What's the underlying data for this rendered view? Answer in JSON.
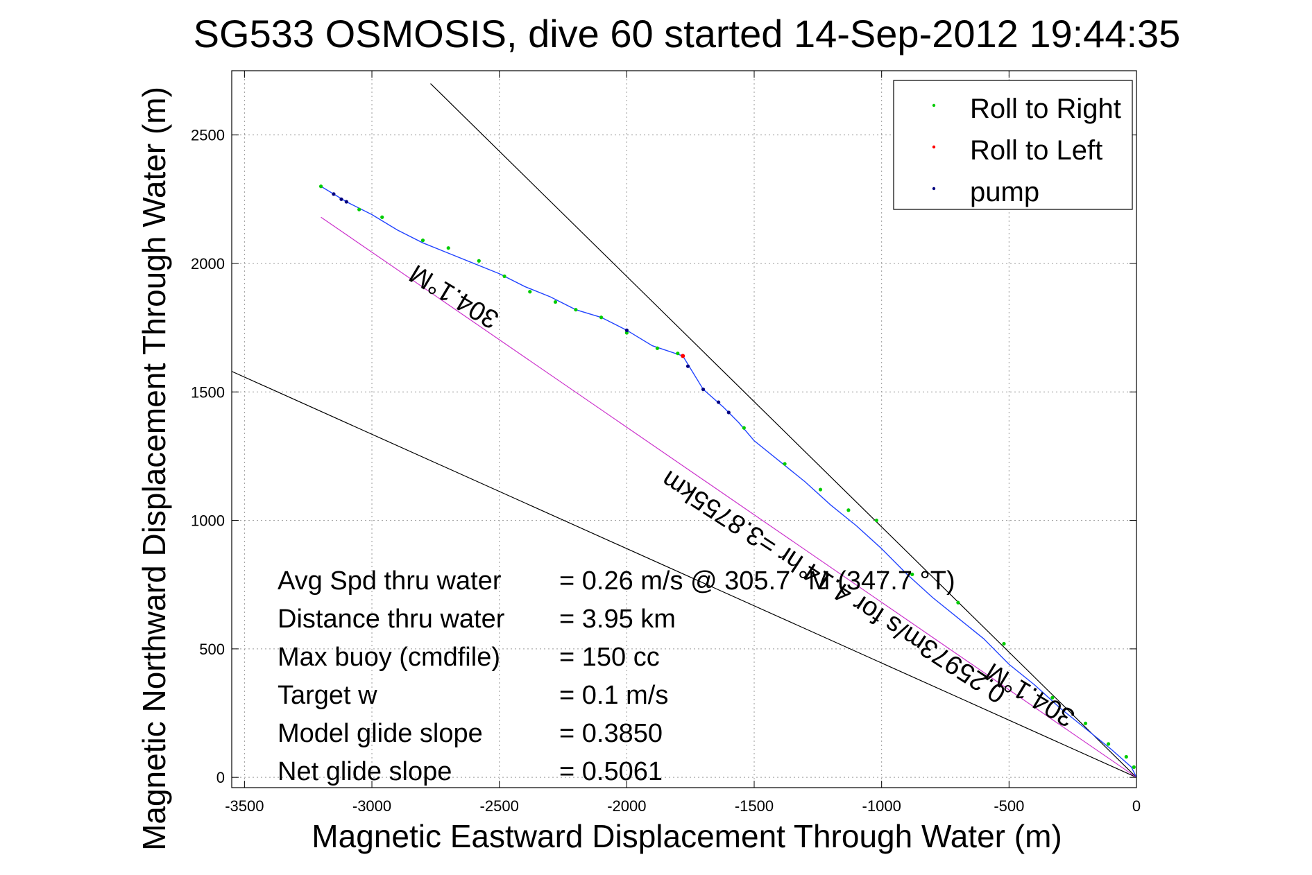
{
  "chart_data": {
    "type": "scatter",
    "title": "SG533 OSMOSIS, dive 60 started 14-Sep-2012 19:44:35",
    "xlabel": "Magnetic Eastward Displacement Through Water (m)",
    "ylabel": "Magnetic Northward Displacement Through Water (m)",
    "xlim": [
      -3550,
      0
    ],
    "ylim": [
      -40,
      2750
    ],
    "xticks": [
      -3500,
      -3000,
      -2500,
      -2000,
      -1500,
      -1000,
      -500,
      0
    ],
    "yticks": [
      0,
      500,
      1000,
      1500,
      2000,
      2500
    ],
    "xtick_labels": [
      "-3500",
      "-3000",
      "-2500",
      "-2000",
      "-1500",
      "-1000",
      "-500",
      "0"
    ],
    "ytick_labels": [
      "0",
      "500",
      "1000",
      "1500",
      "2000",
      "2500"
    ],
    "grid": true,
    "legend_position": "top-right",
    "legend": [
      {
        "label": "Roll to Right",
        "color": "#00cc00"
      },
      {
        "label": "Roll to Left",
        "color": "#ff0000"
      },
      {
        "label": "pump",
        "color": "#000080"
      }
    ],
    "track": {
      "color": "#2244ff",
      "x": [
        -3200,
        -3100,
        -3000,
        -2900,
        -2800,
        -2700,
        -2600,
        -2500,
        -2400,
        -2300,
        -2200,
        -2100,
        -2000,
        -1900,
        -1780,
        -1700,
        -1620,
        -1560,
        -1500,
        -1400,
        -1300,
        -1200,
        -1100,
        -1000,
        -900,
        -800,
        -700,
        -600,
        -500,
        -400,
        -300,
        -200,
        -100,
        -20,
        0
      ],
      "y": [
        2300,
        2240,
        2190,
        2130,
        2080,
        2040,
        2000,
        1960,
        1910,
        1870,
        1820,
        1790,
        1740,
        1680,
        1640,
        1510,
        1440,
        1380,
        1310,
        1230,
        1150,
        1060,
        980,
        890,
        790,
        700,
        620,
        540,
        440,
        360,
        270,
        190,
        110,
        40,
        0
      ]
    },
    "roll_right_points": {
      "x": [
        -3200,
        -3050,
        -2960,
        -2800,
        -2700,
        -2580,
        -2480,
        -2380,
        -2280,
        -2200,
        -2100,
        -2000,
        -1880,
        -1800,
        -1540,
        -1380,
        -1240,
        -1130,
        -1020,
        -880,
        -700,
        -520,
        -330,
        -200,
        -110,
        -40,
        -10
      ],
      "y": [
        2300,
        2210,
        2180,
        2090,
        2060,
        2010,
        1950,
        1890,
        1850,
        1820,
        1790,
        1730,
        1670,
        1650,
        1360,
        1220,
        1120,
        1040,
        1000,
        790,
        680,
        520,
        310,
        210,
        130,
        80,
        40
      ]
    },
    "roll_left_points": {
      "x": [
        -1780
      ],
      "y": [
        1640
      ]
    },
    "pump_points": {
      "x": [
        -3150,
        -3120,
        -3100,
        -2000,
        -1760,
        -1700,
        -1640,
        -1600
      ],
      "y": [
        2270,
        2250,
        2240,
        1740,
        1600,
        1510,
        1460,
        1420
      ]
    },
    "heading_line": {
      "color": "#000000",
      "x": [
        0,
        -2770
      ],
      "y": [
        0,
        2700
      ]
    },
    "heading_line_label": "304.1°M",
    "heading_line_label_2": "304.1°M",
    "bound_line": {
      "color": "#000000",
      "x": [
        0,
        -3550
      ],
      "y": [
        0,
        1580
      ]
    },
    "current_line": {
      "color": "#cc33cc",
      "x": [
        0,
        -3200
      ],
      "y": [
        0,
        2180
      ]
    },
    "current_line_label": "0.25973m/s for 4.14 hr =3.8755km",
    "stats": [
      {
        "label": "Avg Spd thru water",
        "value": "=  0.26 m/s @ 305.7 °M (347.7 °T)"
      },
      {
        "label": "Distance thru water",
        "value": "=  3.95 km"
      },
      {
        "label": "Max buoy (cmdfile)",
        "value": "= 150 cc"
      },
      {
        "label": "Target w",
        "value": "= 0.1 m/s"
      },
      {
        "label": "Model glide slope",
        "value": "= 0.3850"
      },
      {
        "label": "Net glide slope",
        "value": "= 0.5061"
      }
    ]
  }
}
